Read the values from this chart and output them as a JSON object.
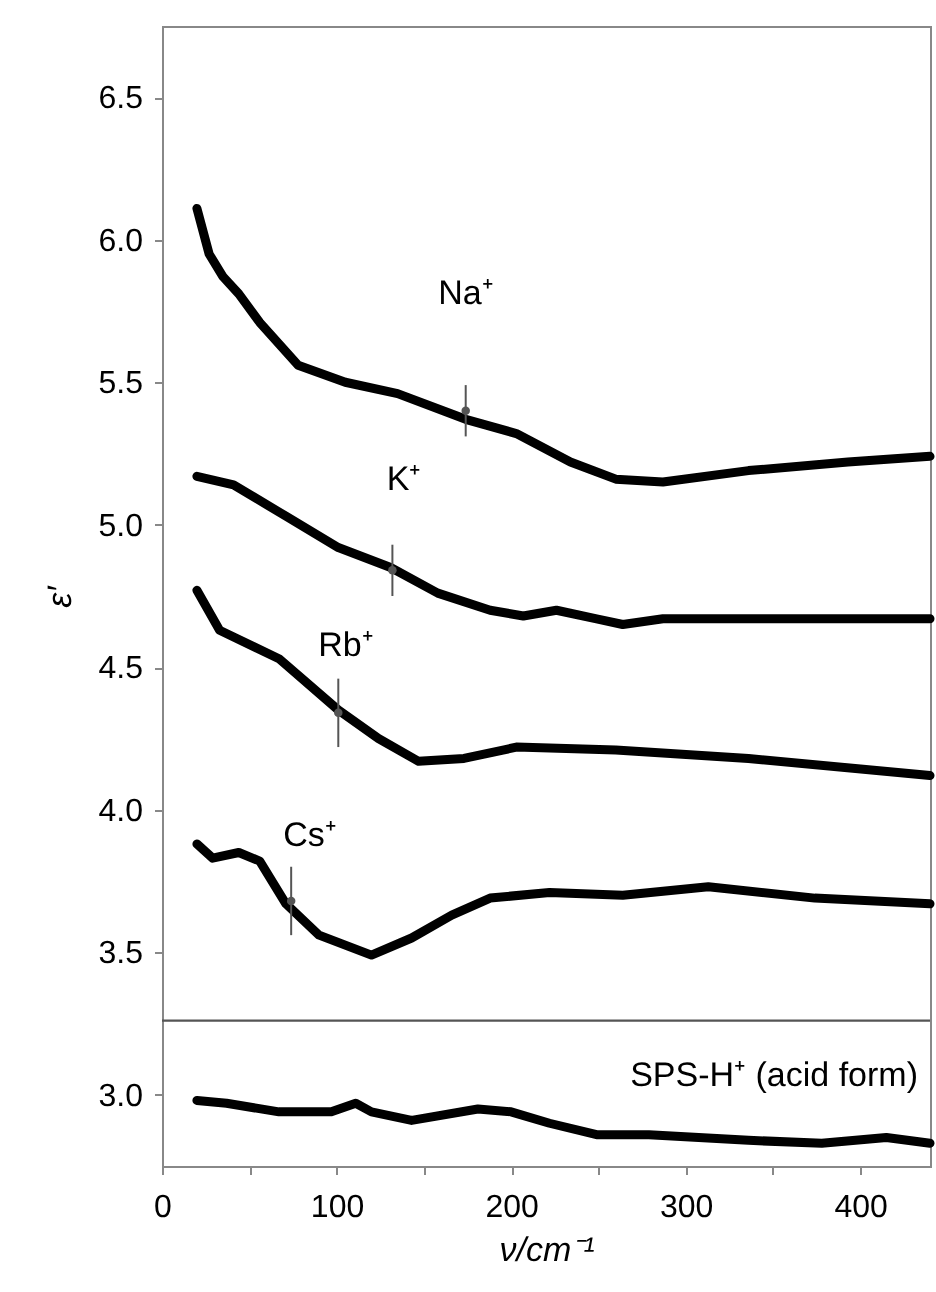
{
  "chart_data": {
    "type": "line",
    "xlabel": "ν/cm⁻¹",
    "ylabel": "ε′",
    "xlim": [
      0,
      440
    ],
    "ylim": [
      2.75,
      6.75
    ],
    "xticks": [
      0,
      {
        "value": 50,
        "label": null
      },
      100,
      {
        "value": 150,
        "label": null
      },
      200,
      {
        "value": 250,
        "label": null
      },
      300,
      {
        "value": 350,
        "label": null
      },
      400
    ],
    "yticks": [
      {
        "value": 3,
        "label": "3.0"
      },
      {
        "value": 3.5,
        "label": "3.5"
      },
      {
        "value": 4,
        "label": "4.0"
      },
      {
        "value": 4.5,
        "label": "4.5"
      },
      {
        "value": 5,
        "label": "5.0"
      },
      {
        "value": 5.5,
        "label": "5.5"
      },
      {
        "value": 6,
        "label": "6.0"
      },
      {
        "value": 6.5,
        "label": "6.5"
      }
    ],
    "series": [
      {
        "color": "#000000",
        "x": [
          20,
          27,
          35,
          44,
          56,
          78,
          105,
          135,
          174,
          203,
          234,
          260,
          287,
          336,
          393,
          440
        ],
        "values": [
          6.11,
          5.95,
          5.87,
          5.81,
          5.71,
          5.56,
          5.5,
          5.46,
          5.37,
          5.32,
          5.22,
          5.16,
          5.15,
          5.19,
          5.22,
          5.24
        ]
      },
      {
        "color": "#000000",
        "x": [
          20,
          41,
          71,
          101,
          131,
          158,
          188,
          207,
          226,
          249,
          264,
          287,
          372,
          440
        ],
        "values": [
          5.17,
          5.14,
          5.03,
          4.92,
          4.85,
          4.76,
          4.7,
          4.68,
          4.7,
          4.67,
          4.65,
          4.67,
          4.67,
          4.67
        ]
      },
      {
        "color": "#000000",
        "x": [
          20,
          33,
          67,
          101,
          124,
          147,
          173,
          196,
          203,
          260,
          336,
          440
        ],
        "values": [
          4.77,
          4.63,
          4.53,
          4.35,
          4.25,
          4.17,
          4.18,
          4.21,
          4.22,
          4.21,
          4.18,
          4.12
        ]
      },
      {
        "color": "#000000",
        "x": [
          20,
          29,
          44,
          56,
          71,
          90,
          120,
          143,
          166,
          188,
          222,
          264,
          313,
          374,
          440
        ],
        "values": [
          3.88,
          3.83,
          3.85,
          3.82,
          3.67,
          3.56,
          3.49,
          3.55,
          3.63,
          3.69,
          3.71,
          3.7,
          3.73,
          3.69,
          3.67
        ]
      },
      {
        "color": "#000000",
        "x": [
          20,
          37,
          67,
          97,
          111,
          120,
          143,
          181,
          200,
          222,
          249,
          279,
          336,
          378,
          415,
          440
        ],
        "values": [
          2.98,
          2.97,
          2.94,
          2.94,
          2.97,
          2.94,
          2.91,
          2.95,
          2.94,
          2.9,
          2.86,
          2.86,
          2.84,
          2.83,
          2.85,
          2.83
        ]
      },
      {
        "type": "scatter",
        "color": "#555555",
        "marker": "circle",
        "x": [
          174,
          132,
          101,
          74
        ],
        "values": [
          5.4,
          4.84,
          4.34,
          3.68
        ],
        "errors": [
          0.09,
          0.09,
          0.12,
          0.12
        ]
      }
    ],
    "ref_lines": [
      {
        "axis": "y",
        "value": 3.26,
        "color": "#555555"
      }
    ],
    "annotations": [
      "Na⁺",
      "K⁺",
      "Rb⁺",
      "Cs⁺",
      "SPS-H⁺ (acid form)"
    ]
  }
}
